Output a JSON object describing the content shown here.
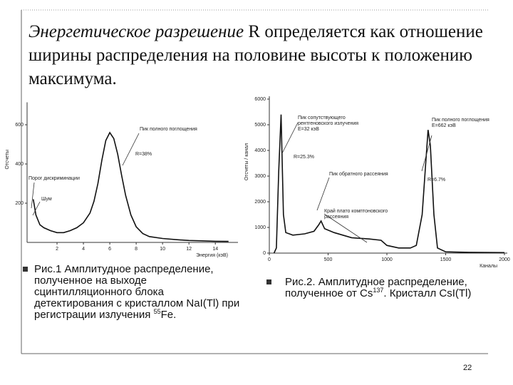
{
  "title_italic": "Энергетическое разрешение",
  "title_rest": "R определяется как отношение ширины распределения на половине высоты к положению максимума.",
  "figure_1": {
    "type": "line",
    "x_label": "Энергия (кэВ)",
    "y_label": "Отсчеты",
    "xlim": [
      0,
      15.5
    ],
    "ylim": [
      0,
      700
    ],
    "xticks": [
      2,
      4,
      6,
      8,
      10,
      12,
      14
    ],
    "yticks": [
      200,
      400,
      600
    ],
    "color": "#111111",
    "x": [
      0.2,
      0.4,
      0.7,
      1,
      1.5,
      2,
      2.5,
      3,
      3.5,
      4,
      4.5,
      4.8,
      5.1,
      5.4,
      5.7,
      6,
      6.3,
      6.6,
      6.9,
      7.2,
      7.6,
      8,
      8.5,
      9,
      10,
      11,
      12,
      13,
      14,
      15
    ],
    "values": [
      220,
      140,
      90,
      75,
      60,
      50,
      50,
      60,
      75,
      100,
      150,
      210,
      300,
      420,
      520,
      560,
      530,
      450,
      340,
      240,
      140,
      80,
      45,
      30,
      20,
      14,
      10,
      8,
      6,
      5
    ],
    "annotations": [
      [
        "Пик полного поглощения"
      ],
      [
        "R=38%"
      ],
      [
        "Порог дискриминации"
      ],
      [
        "Шум"
      ]
    ]
  },
  "figure_2": {
    "type": "line",
    "x_label": "Каналы",
    "y_label": "Отсчеты / канал",
    "xlim": [
      0,
      2000
    ],
    "ylim": [
      0,
      6000
    ],
    "xticks": [
      0,
      500,
      1000,
      1500,
      2000
    ],
    "yticks": [
      0,
      1000,
      2000,
      3000,
      4000,
      5000,
      6000
    ],
    "color": "#111111",
    "x": [
      40,
      60,
      80,
      100,
      120,
      140,
      200,
      300,
      380,
      420,
      440,
      470,
      550,
      700,
      850,
      950,
      1000,
      1100,
      1200,
      1250,
      1300,
      1330,
      1350,
      1370,
      1400,
      1430,
      1500,
      1700,
      2000
    ],
    "values": [
      0,
      200,
      3200,
      5400,
      1500,
      800,
      700,
      750,
      850,
      1100,
      1250,
      950,
      800,
      600,
      550,
      500,
      300,
      200,
      200,
      300,
      1500,
      3500,
      4800,
      4200,
      1500,
      200,
      50,
      30,
      20
    ],
    "annotations": [
      [
        "Пик сопутствующего",
        "рентгеновского излучения",
        "E=32 кэВ"
      ],
      [
        "R=25.3%"
      ],
      [
        "Пик обратного рассеяния"
      ],
      [
        "Край плато комптоновского",
        "рассеяния"
      ],
      [
        "Пик полного поглощения",
        "E=662 кэВ"
      ],
      [
        "R=6.7%"
      ]
    ]
  },
  "caption_1": [
    "Рис.1 Амплитудное распределение, полученное на выходе сцинтилляционного блока детектирования с кристаллом NaI(Tl) при регистрации излучения ",
    "55",
    "Fe."
  ],
  "caption_2": [
    "Рис.2. Амплитудное распределение, полученное от Cs",
    "137",
    ". Кристалл CsI(Tl)"
  ],
  "page_number": "22"
}
